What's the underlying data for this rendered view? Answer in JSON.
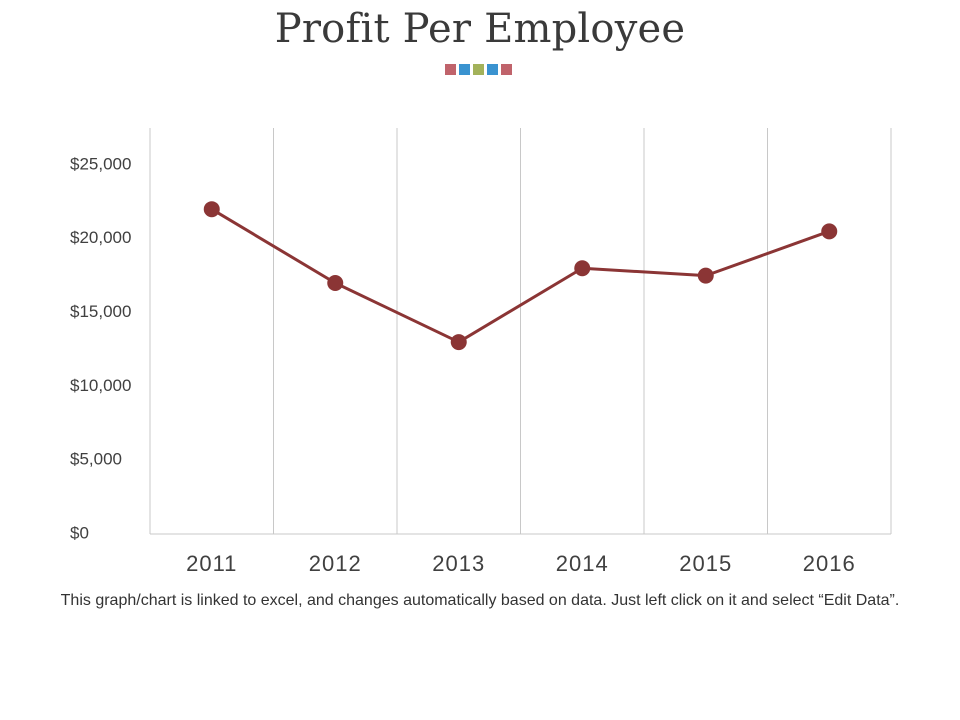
{
  "page": {
    "title": "Profit Per Employee",
    "caption": "This graph/chart is linked to excel, and changes automatically based on data. Just left click on it and select “Edit Data”.",
    "decor_squares": [
      "#c0636b",
      "#3a93d0",
      "#a3b25a",
      "#3a93d0",
      "#c0636b"
    ]
  },
  "chart_data": {
    "type": "line",
    "categories": [
      "2011",
      "2012",
      "2013",
      "2014",
      "2015",
      "2016"
    ],
    "series": [
      {
        "values": [
          22000,
          17000,
          13000,
          18000,
          17500,
          20500
        ],
        "color": "#8b3535"
      }
    ],
    "y_ticks": [
      0,
      5000,
      10000,
      15000,
      20000,
      25000
    ],
    "y_tick_labels": [
      "$0",
      "$5,000",
      "$10,000",
      "$15,000",
      "$20,000",
      "$25,000"
    ],
    "ylim": [
      0,
      27500
    ],
    "grid": "vertical",
    "legend": "none"
  }
}
